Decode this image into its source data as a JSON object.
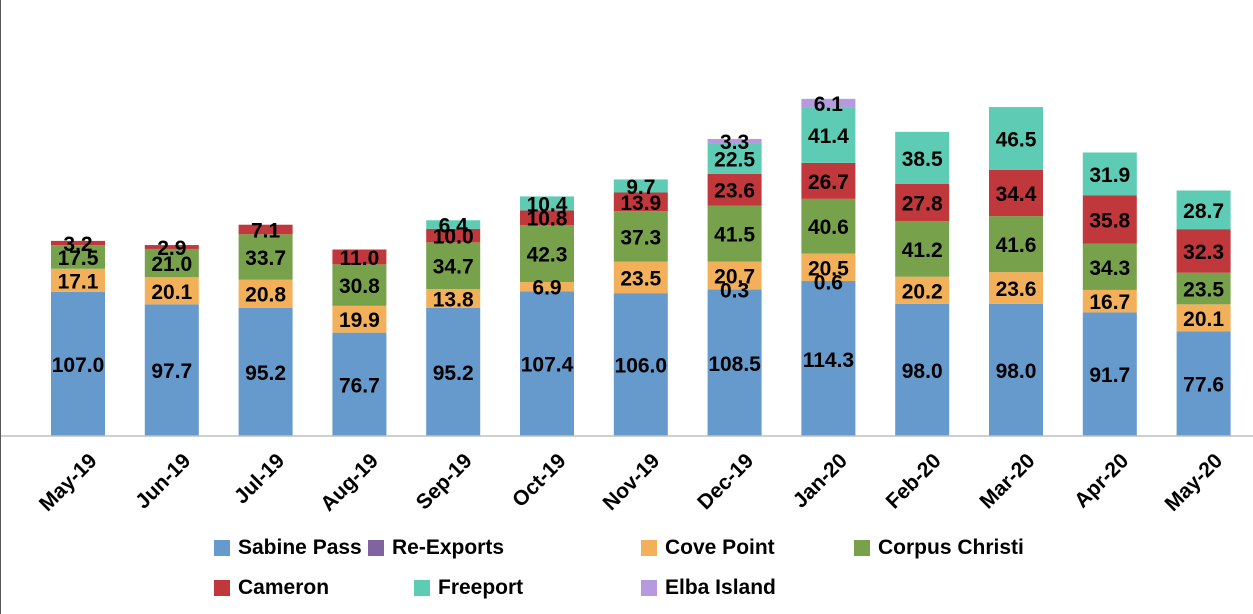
{
  "chart_data": {
    "type": "bar",
    "stacked": true,
    "title": "",
    "xlabel": "",
    "ylabel": "",
    "ylim": [
      0,
      350
    ],
    "grid": false,
    "legend_position": "bottom",
    "categories": [
      "May-19",
      "Jun-19",
      "Jul-19",
      "Aug-19",
      "Sep-19",
      "Oct-19",
      "Nov-19",
      "Dec-19",
      "Jan-20",
      "Feb-20",
      "Mar-20",
      "Apr-20",
      "May-20"
    ],
    "series": [
      {
        "name": "Sabine Pass",
        "color": "#6699CC",
        "values": [
          107.0,
          97.7,
          95.2,
          76.7,
          95.2,
          107.4,
          106.0,
          108.5,
          114.3,
          98.0,
          98.0,
          91.7,
          77.6
        ],
        "labels": [
          "107.0",
          "97.7",
          "95.2",
          "76.7",
          "95.2",
          "107.4",
          "106.0",
          "108.5",
          "114.3",
          "98.0",
          "98.0",
          "91.7",
          "77.6"
        ]
      },
      {
        "name": "Re-Exports",
        "color": "#8064A2",
        "values": [
          null,
          null,
          null,
          null,
          null,
          null,
          null,
          0.3,
          0.6,
          null,
          null,
          null,
          null
        ],
        "labels": [
          "",
          "",
          "",
          "",
          "",
          "",
          "",
          "0.3",
          "0.6",
          "",
          "",
          "",
          ""
        ]
      },
      {
        "name": "Cove Point",
        "color": "#F2B05A",
        "values": [
          17.1,
          20.1,
          20.8,
          19.9,
          13.8,
          6.9,
          23.5,
          20.7,
          20.5,
          20.2,
          23.6,
          16.7,
          20.1
        ],
        "labels": [
          "17.1",
          "20.1",
          "20.8",
          "19.9",
          "13.8",
          "6.9",
          "23.5",
          "20.7",
          "20.5",
          "20.2",
          "23.6",
          "16.7",
          "20.1"
        ]
      },
      {
        "name": "Corpus Christi",
        "color": "#77A14A",
        "values": [
          17.5,
          21.0,
          33.7,
          30.8,
          34.7,
          42.3,
          37.3,
          41.5,
          40.6,
          41.2,
          41.6,
          34.3,
          23.5
        ],
        "labels": [
          "17.5",
          "21.0",
          "33.7",
          "30.8",
          "34.7",
          "42.3",
          "37.3",
          "41.5",
          "40.6",
          "41.2",
          "41.6",
          "34.3",
          "23.5"
        ]
      },
      {
        "name": "Cameron",
        "color": "#C0383B",
        "values": [
          3.2,
          2.9,
          7.1,
          11.0,
          10.0,
          10.8,
          13.9,
          23.6,
          26.7,
          27.8,
          34.4,
          35.8,
          32.3
        ],
        "labels": [
          "3.2",
          "2.9",
          "7.1",
          "11.0",
          "10.0",
          "10.8",
          "13.9",
          "23.6",
          "26.7",
          "27.8",
          "34.4",
          "35.8",
          "32.3"
        ]
      },
      {
        "name": "Freeport",
        "color": "#5ECCB4",
        "values": [
          null,
          null,
          null,
          null,
          6.4,
          10.4,
          9.7,
          22.5,
          41.4,
          38.5,
          46.5,
          31.9,
          28.7
        ],
        "labels": [
          "",
          "",
          "",
          "",
          "6.4",
          "10.4",
          "9.7",
          "22.5",
          "41.4",
          "38.5",
          "46.5",
          "31.9",
          "28.7"
        ]
      },
      {
        "name": "Elba Island",
        "color": "#B69AE0",
        "values": [
          null,
          null,
          null,
          null,
          null,
          null,
          null,
          3.3,
          6.1,
          null,
          null,
          null,
          null
        ],
        "labels": [
          "",
          "",
          "",
          "",
          "",
          "",
          "",
          "3.3",
          "6.1",
          "",
          "",
          "",
          ""
        ]
      }
    ]
  }
}
